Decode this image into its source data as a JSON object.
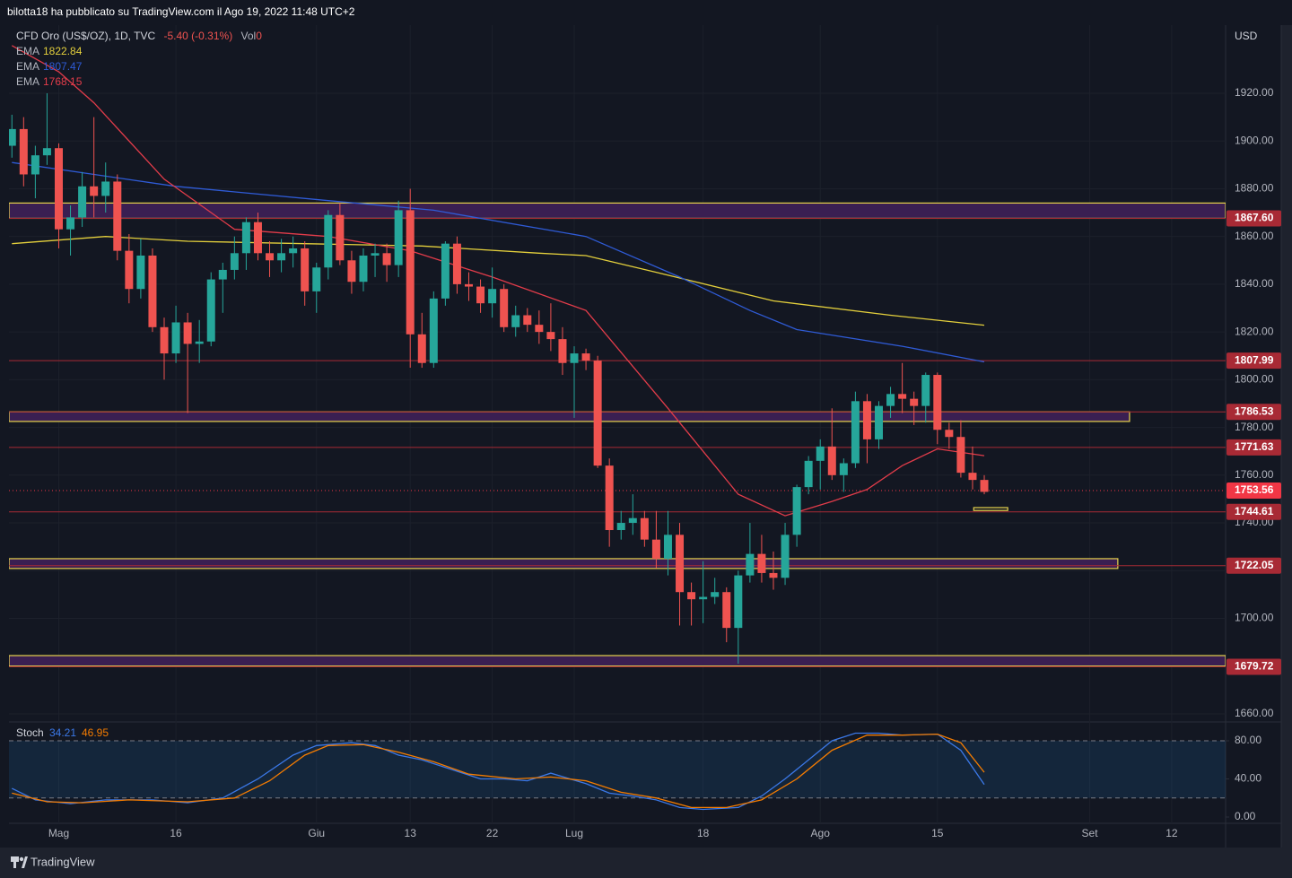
{
  "header": "bilotta18 ha pubblicato su TradingView.com il Ago 19, 2022 11:48 UTC+2",
  "footer": "TradingView",
  "chart_data": [
    {
      "type": "candlestick",
      "title": "CFD Oro (US$/OZ), 1D, TVC",
      "change": "-5.40 (-0.31%)",
      "volume_label": "Vol",
      "volume": 0,
      "y_label": "USD",
      "xlim": [
        -0.25,
        103.6
      ],
      "ylim": [
        1656.6,
        1947.8
      ],
      "xticks": [
        {
          "value": 4,
          "label": "Mag"
        },
        {
          "value": 14,
          "label": "16"
        },
        {
          "value": 26,
          "label": "Giu"
        },
        {
          "value": 34,
          "label": "13"
        },
        {
          "value": 41,
          "label": "22"
        },
        {
          "value": 48,
          "label": "Lug"
        },
        {
          "value": 59,
          "label": "18"
        },
        {
          "value": 69,
          "label": "Ago"
        },
        {
          "value": 79,
          "label": "15"
        },
        {
          "value": 92,
          "label": "Set"
        },
        {
          "value": 99,
          "label": "12"
        }
      ],
      "yticks": [
        {
          "value": 1660,
          "label": "1660.00"
        },
        {
          "value": 1680,
          "label": "1680.00"
        },
        {
          "value": 1700,
          "label": "1700.00"
        },
        {
          "value": 1720,
          "label": "1720.00"
        },
        {
          "value": 1740,
          "label": "1740.00"
        },
        {
          "value": 1760,
          "label": "1760.00"
        },
        {
          "value": 1780,
          "label": "1780.00"
        },
        {
          "value": 1800,
          "label": "1800.00"
        },
        {
          "value": 1820,
          "label": "1820.00"
        },
        {
          "value": 1840,
          "label": "1840.00"
        },
        {
          "value": 1860,
          "label": "1860.00"
        },
        {
          "value": 1880,
          "label": "1880.00"
        },
        {
          "value": 1900,
          "label": "1900.00"
        },
        {
          "value": 1920,
          "label": "1920.00"
        }
      ],
      "grid": true,
      "up_color": "#26a69a",
      "down_color": "#ef5350",
      "open": [
        1898,
        1905,
        1886,
        1894,
        1897,
        1863,
        1868,
        1881,
        1877,
        1883,
        1854,
        1838,
        1852,
        1822,
        1811,
        1824,
        1815,
        1816,
        1842,
        1846,
        1853,
        1866,
        1853,
        1850,
        1853,
        1855,
        1837,
        1847,
        1869,
        1850,
        1841,
        1852,
        1853,
        1848,
        1871,
        1819,
        1807,
        1834,
        1857,
        1840,
        1839,
        1832,
        1838,
        1822,
        1827,
        1823,
        1820,
        1817,
        1807,
        1811,
        1808,
        1764,
        1737,
        1740,
        1742,
        1733,
        1725,
        1735,
        1711,
        1708,
        1709,
        1711,
        1696,
        1718,
        1727,
        1719,
        1717,
        1735,
        1755,
        1766,
        1772,
        1760,
        1765,
        1791,
        1775,
        1789,
        1794,
        1792,
        1789,
        1802,
        1779,
        1776,
        1761,
        1758
      ],
      "high": [
        1911,
        1910,
        1898,
        1920,
        1899,
        1873,
        1887,
        1910,
        1891,
        1886,
        1861,
        1859,
        1855,
        1826,
        1831,
        1828,
        1825,
        1845,
        1849,
        1860,
        1868,
        1870,
        1858,
        1859,
        1860,
        1858,
        1849,
        1871,
        1874,
        1854,
        1855,
        1857,
        1857,
        1875,
        1880,
        1828,
        1837,
        1858,
        1860,
        1845,
        1842,
        1847,
        1840,
        1831,
        1830,
        1829,
        1832,
        1822,
        1814,
        1813,
        1810,
        1767,
        1745,
        1752,
        1745,
        1745,
        1745,
        1740,
        1715,
        1724,
        1717,
        1713,
        1720,
        1740,
        1735,
        1728,
        1740,
        1756,
        1768,
        1775,
        1788,
        1767,
        1795,
        1794,
        1791,
        1797,
        1807,
        1795,
        1803,
        1803,
        1782,
        1783,
        1772,
        1760
      ],
      "low": [
        1893,
        1881,
        1876,
        1890,
        1855,
        1852,
        1864,
        1868,
        1870,
        1850,
        1832,
        1834,
        1820,
        1800,
        1807,
        1786,
        1807,
        1814,
        1828,
        1842,
        1846,
        1850,
        1843,
        1845,
        1847,
        1831,
        1828,
        1842,
        1848,
        1836,
        1837,
        1843,
        1841,
        1843,
        1805,
        1805,
        1805,
        1831,
        1836,
        1833,
        1828,
        1826,
        1820,
        1818,
        1820,
        1815,
        1812,
        1802,
        1784,
        1804,
        1763,
        1730,
        1733,
        1735,
        1730,
        1721,
        1718,
        1697,
        1697,
        1698,
        1706,
        1690,
        1681,
        1715,
        1715,
        1712,
        1714,
        1730,
        1752,
        1754,
        1758,
        1753,
        1763,
        1765,
        1771,
        1784,
        1786,
        1781,
        1782,
        1773,
        1771,
        1759,
        1754,
        1752
      ],
      "close": [
        1905,
        1886,
        1894,
        1897,
        1863,
        1868,
        1881,
        1877,
        1883,
        1854,
        1838,
        1852,
        1822,
        1811,
        1824,
        1815,
        1816,
        1842,
        1846,
        1853,
        1866,
        1853,
        1850,
        1853,
        1855,
        1837,
        1847,
        1869,
        1850,
        1841,
        1852,
        1853,
        1848,
        1871,
        1819,
        1807,
        1834,
        1857,
        1840,
        1839,
        1832,
        1838,
        1822,
        1827,
        1823,
        1820,
        1817,
        1807,
        1811,
        1808,
        1764,
        1737,
        1740,
        1742,
        1733,
        1725,
        1735,
        1711,
        1708,
        1709,
        1711,
        1696,
        1718,
        1727,
        1719,
        1717,
        1735,
        1755,
        1766,
        1772,
        1760,
        1765,
        1791,
        1775,
        1789,
        1794,
        1792,
        1789,
        1802,
        1779,
        1776,
        1761,
        1758,
        1753
      ],
      "series": [
        {
          "name": "EMA",
          "color": "#e3cf3c",
          "x": [
            0,
            8,
            15,
            25,
            35,
            45,
            49,
            55,
            65,
            75,
            83
          ],
          "values": [
            1857,
            1860,
            1858,
            1857,
            1856,
            1853,
            1852,
            1845,
            1833,
            1827,
            1822.84
          ]
        },
        {
          "name": "EMA",
          "color": "#2f5bd6",
          "x": [
            0,
            14,
            27,
            36,
            49,
            57,
            63,
            67,
            76,
            83
          ],
          "values": [
            1891,
            1881,
            1875,
            1871,
            1860,
            1843,
            1829,
            1821,
            1814,
            1807.47
          ]
        },
        {
          "name": "EMA",
          "color": "#e23c4a",
          "x": [
            0,
            4,
            7,
            13,
            19,
            27,
            34,
            41,
            49,
            56,
            62,
            66,
            70,
            73,
            76,
            79,
            83
          ],
          "values": [
            1940,
            1929,
            1916,
            1884,
            1863,
            1860,
            1854,
            1843,
            1829,
            1788,
            1752,
            1743,
            1749,
            1754,
            1764,
            1771,
            1768.15
          ]
        }
      ],
      "level_color": "#a82a35",
      "levels": [
        {
          "value": 1867.6,
          "label": "1867.60"
        },
        {
          "value": 1807.99,
          "label": "1807.99"
        },
        {
          "value": 1786.53,
          "label": "1786.53"
        },
        {
          "value": 1771.63,
          "label": "1771.63"
        },
        {
          "value": 1744.61,
          "label": "1744.61"
        },
        {
          "value": 1722.05,
          "label": "1722.05"
        },
        {
          "value": 1679.72,
          "label": "1679.72"
        }
      ],
      "last_price": {
        "value": 1753.56,
        "label": "1753.56",
        "color": "#f23645"
      },
      "zone_fill": "#3a1f52",
      "zone_border": "#e8d44d",
      "zones": [
        {
          "low": 1867.6,
          "high": 1874
        },
        {
          "low": 1782.5,
          "high": 1786.53,
          "x_end": 95.4
        },
        {
          "low": 1720.9,
          "high": 1725,
          "x_end": 94.4
        },
        {
          "low": 1680,
          "high": 1684.4
        },
        {
          "low": 1745.2,
          "high": 1746.4,
          "x_start": 82.1,
          "x_end": 85,
          "empty": true
        }
      ]
    },
    {
      "type": "line",
      "title": "Stoch",
      "ylim": [
        -6.6,
        99.8
      ],
      "yticks": [
        {
          "value": 80,
          "label": "80.00"
        },
        {
          "value": 40,
          "label": "40.00"
        },
        {
          "value": 0,
          "label": "0.00"
        }
      ],
      "band": [
        20,
        80
      ],
      "series": [
        {
          "color": "#3b78e7",
          "x": [
            0,
            2,
            5,
            8,
            12,
            15,
            18,
            21,
            24,
            26,
            29,
            31,
            33,
            35,
            38,
            40,
            42,
            44,
            46,
            49,
            51,
            53,
            55,
            57,
            59,
            62,
            64,
            66,
            68,
            70,
            72,
            74,
            76,
            79,
            81,
            83
          ],
          "values": [
            30,
            18,
            14,
            18,
            18,
            15,
            20,
            40,
            65,
            75,
            78,
            75,
            65,
            60,
            48,
            40,
            40,
            38,
            46,
            35,
            25,
            22,
            18,
            10,
            8,
            10,
            22,
            40,
            60,
            80,
            88,
            88,
            86,
            87,
            70,
            34.21
          ]
        },
        {
          "color": "#f57c00",
          "x": [
            0,
            3,
            6,
            10,
            15,
            19,
            22,
            25,
            27,
            30,
            33,
            36,
            39,
            43,
            46,
            49,
            52,
            55,
            58,
            61,
            64,
            67,
            70,
            73,
            76,
            79,
            81,
            83
          ],
          "values": [
            25,
            16,
            15,
            18,
            16,
            20,
            38,
            65,
            75,
            76,
            68,
            58,
            45,
            40,
            42,
            38,
            26,
            20,
            10,
            10,
            18,
            40,
            70,
            86,
            86,
            87,
            78,
            46.95
          ]
        }
      ]
    }
  ]
}
